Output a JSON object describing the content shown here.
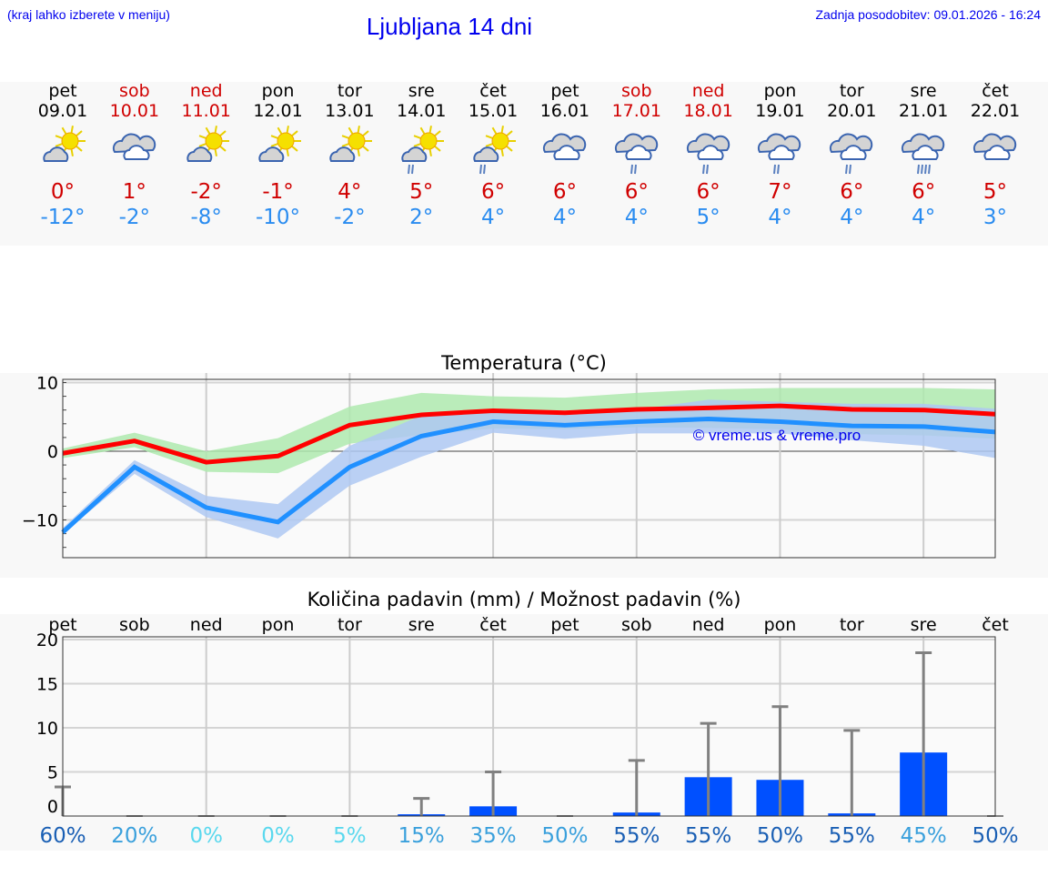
{
  "header": {
    "hint": "(kraj lahko izberete v meniju)",
    "title": "Ljubljana 14 dni",
    "updated": "Zadnja posodobitev: 09.01.2026 - 16:24"
  },
  "colors": {
    "weekday": "#000000",
    "weekend": "#d00000",
    "max": "#d00000",
    "min": "#2a8cf0",
    "max_band": "#aee9ae",
    "min_band": "#aec8f2",
    "bar": "#0050ff",
    "errbar": "#808080"
  },
  "days": [
    {
      "name": "pet",
      "date": "09.01",
      "weekend": false,
      "icon": "partly-cloudy-icon",
      "max": "0°",
      "min": "-12°"
    },
    {
      "name": "sob",
      "date": "10.01",
      "weekend": true,
      "icon": "cloudy-icon",
      "max": "1°",
      "min": "-2°"
    },
    {
      "name": "ned",
      "date": "11.01",
      "weekend": true,
      "icon": "partly-cloudy-icon",
      "max": "-2°",
      "min": "-8°"
    },
    {
      "name": "pon",
      "date": "12.01",
      "weekend": false,
      "icon": "partly-cloudy-icon",
      "max": "-1°",
      "min": "-10°"
    },
    {
      "name": "tor",
      "date": "13.01",
      "weekend": false,
      "icon": "partly-cloudy-icon",
      "max": "4°",
      "min": "-2°"
    },
    {
      "name": "sre",
      "date": "14.01",
      "weekend": false,
      "icon": "partly-cloudy-rain-icon",
      "max": "5°",
      "min": "2°"
    },
    {
      "name": "čet",
      "date": "15.01",
      "weekend": false,
      "icon": "partly-cloudy-rain-icon",
      "max": "6°",
      "min": "4°"
    },
    {
      "name": "pet",
      "date": "16.01",
      "weekend": false,
      "icon": "cloudy-icon",
      "max": "6°",
      "min": "4°"
    },
    {
      "name": "sob",
      "date": "17.01",
      "weekend": true,
      "icon": "cloudy-rain-icon",
      "max": "6°",
      "min": "4°"
    },
    {
      "name": "ned",
      "date": "18.01",
      "weekend": true,
      "icon": "cloudy-rain-icon",
      "max": "6°",
      "min": "5°"
    },
    {
      "name": "pon",
      "date": "19.01",
      "weekend": false,
      "icon": "cloudy-rain-icon",
      "max": "7°",
      "min": "4°"
    },
    {
      "name": "tor",
      "date": "20.01",
      "weekend": false,
      "icon": "cloudy-rain-icon",
      "max": "6°",
      "min": "4°"
    },
    {
      "name": "sre",
      "date": "21.01",
      "weekend": false,
      "icon": "cloudy-heavy-rain-icon",
      "max": "6°",
      "min": "4°"
    },
    {
      "name": "čet",
      "date": "22.01",
      "weekend": false,
      "icon": "cloudy-icon",
      "max": "5°",
      "min": "3°"
    }
  ],
  "chart_data": [
    {
      "type": "line",
      "title": "Temperatura (°C)",
      "ylim": [
        -15.5,
        11.3
      ],
      "yticks": [
        10,
        0,
        -10
      ],
      "ytick_labels": [
        "10",
        "0",
        "−10"
      ],
      "grid": true,
      "watermark": "© vreme.us & vreme.pro",
      "x": [
        "09.01",
        "10.01",
        "11.01",
        "12.01",
        "13.01",
        "14.01",
        "15.01",
        "16.01",
        "17.01",
        "18.01",
        "19.01",
        "20.01",
        "21.01",
        "22.01"
      ],
      "series": [
        {
          "role": "max",
          "values": [
            -0.3,
            1.5,
            -1.6,
            -0.7,
            3.8,
            5.3,
            5.9,
            5.6,
            6.1,
            6.3,
            6.6,
            6.1,
            6.0,
            5.4
          ],
          "band_upper": [
            0.4,
            2.7,
            0,
            1.9,
            6.5,
            8.5,
            8.0,
            7.8,
            8.5,
            9.0,
            9.2,
            9.2,
            9.2,
            9.0
          ],
          "band_lower": [
            -1.0,
            0.6,
            -3.0,
            -3.2,
            1.1,
            2.4,
            3.3,
            3.2,
            3.5,
            3.4,
            3.2,
            2.5,
            2.3,
            1.8
          ]
        },
        {
          "role": "min",
          "values": [
            -11.8,
            -2.3,
            -8.2,
            -10.3,
            -2.3,
            2.2,
            4.3,
            3.8,
            4.3,
            4.7,
            4.3,
            3.7,
            3.6,
            2.8
          ],
          "band_upper": [
            -11.2,
            -1.3,
            -6.5,
            -7.7,
            0.8,
            5.2,
            5.7,
            5.7,
            6.1,
            7.5,
            7.2,
            6.9,
            6.9,
            6.2
          ],
          "band_lower": [
            -12.0,
            -3.3,
            -9.6,
            -12.7,
            -5.0,
            -0.8,
            2.7,
            1.8,
            2.6,
            2.6,
            2.6,
            1.6,
            0.8,
            -1.0
          ]
        }
      ]
    },
    {
      "type": "bar",
      "title": "Količina padavin (mm) / Možnost padavin (%)",
      "ylim": [
        0,
        20
      ],
      "yticks": [
        0,
        5,
        10,
        15,
        20
      ],
      "ytick_labels": [
        "0",
        "5",
        "10",
        "15",
        "20"
      ],
      "grid": true,
      "categories": [
        "pet",
        "sob",
        "ned",
        "pon",
        "tor",
        "sre",
        "čet",
        "pet",
        "sob",
        "ned",
        "pon",
        "tor",
        "sre",
        "čet"
      ],
      "values": [
        0,
        0,
        0,
        0,
        0,
        0.2,
        1.1,
        0,
        0.4,
        4.4,
        4.1,
        0.3,
        7.2,
        0
      ],
      "error_upper": [
        3.3,
        0,
        0,
        0,
        0,
        2.0,
        5.0,
        0,
        6.3,
        10.5,
        12.4,
        9.7,
        18.5,
        0
      ],
      "probability": [
        "60%",
        "20%",
        "0%",
        "0%",
        "5%",
        "15%",
        "35%",
        "50%",
        "55%",
        "55%",
        "50%",
        "55%",
        "45%",
        "50%"
      ],
      "probability_colors": [
        "#1a5fb4",
        "#3aa0dc",
        "#5ad8ee",
        "#5ad8ee",
        "#5ad8ee",
        "#3aa0dc",
        "#3aa0dc",
        "#3aa0dc",
        "#1a5fb4",
        "#1a5fb4",
        "#1a5fb4",
        "#1a5fb4",
        "#3aa0dc",
        "#1a5fb4"
      ]
    }
  ]
}
